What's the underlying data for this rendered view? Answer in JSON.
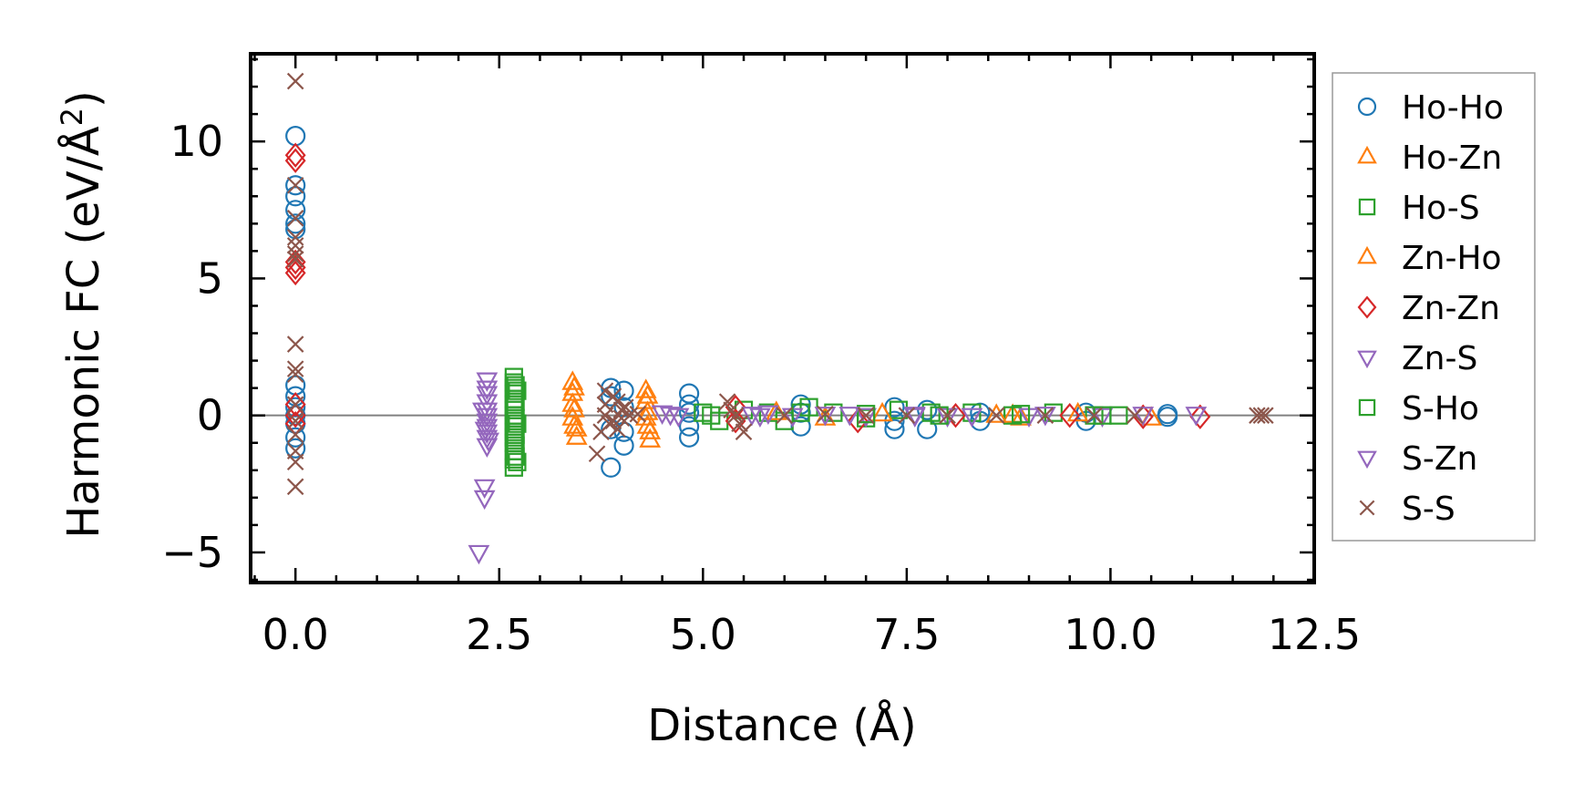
{
  "chart_data": {
    "type": "scatter",
    "xlabel": "Distance (Å)",
    "ylabel_main": "Harmonic FC (eV/Å",
    "ylabel_sup": "2",
    "ylabel_close": ")",
    "xlim": [
      -0.55,
      12.5
    ],
    "ylim": [
      -6.1,
      13.2
    ],
    "xticks": [
      0.0,
      2.5,
      5.0,
      7.5,
      10.0,
      12.5
    ],
    "xtick_labels": [
      "0.0",
      "2.5",
      "5.0",
      "7.5",
      "10.0",
      "12.5"
    ],
    "yticks": [
      -5,
      0,
      5,
      10
    ],
    "ytick_labels": [
      "−5",
      "0",
      "5",
      "10"
    ],
    "zero_line": true,
    "grid": false,
    "legend_position": "right, outside plot",
    "series": [
      {
        "name": "Ho-Ho",
        "marker": "circle",
        "color": "#1f77b4",
        "x": [
          0,
          0,
          0,
          0,
          0,
          0,
          0,
          0,
          0,
          0,
          0,
          0,
          0,
          3.87,
          3.87,
          3.87,
          3.87,
          4.03,
          4.03,
          4.03,
          4.03,
          4.83,
          4.83,
          4.83,
          4.83,
          4.83,
          6.2,
          6.2,
          6.2,
          7.35,
          7.35,
          7.35,
          7.75,
          7.75,
          8.4,
          8.4,
          9.7,
          9.7,
          10.7,
          10.7
        ],
        "y": [
          10.2,
          8.4,
          8.0,
          7.5,
          7.0,
          6.8,
          1.1,
          0.7,
          0.3,
          0,
          -0.3,
          -0.8,
          -1.2,
          -1.9,
          0.7,
          1.0,
          -0.5,
          0.9,
          0.3,
          -0.6,
          -1.1,
          0.8,
          0.4,
          -0.4,
          -0.8,
          0.1,
          0.4,
          0.1,
          -0.4,
          0.3,
          -0.2,
          -0.5,
          0.2,
          -0.5,
          0.1,
          -0.2,
          0.1,
          -0.2,
          0.05,
          -0.05
        ]
      },
      {
        "name": "Ho-Zn",
        "marker": "triangle-up",
        "color": "#ff7f0e",
        "x": [
          3.4,
          3.4,
          3.4,
          3.4,
          3.45,
          3.45,
          4.3,
          4.3,
          4.3,
          4.35,
          4.35,
          8.8,
          8.9,
          10.5
        ],
        "y": [
          1.2,
          0.8,
          0.4,
          -0.1,
          -0.5,
          -0.8,
          0.9,
          0.5,
          -0.1,
          -0.6,
          -0.9,
          0.0,
          -0.1,
          -0.1
        ]
      },
      {
        "name": "Ho-S",
        "marker": "square",
        "color": "#2ca02c",
        "x": [
          2.68,
          2.68,
          2.68,
          2.68,
          2.68,
          2.68,
          2.68,
          2.68,
          2.68,
          2.68,
          2.68,
          2.68,
          2.68,
          2.68,
          2.68,
          2.68,
          2.7,
          2.7,
          2.7,
          2.7,
          2.7,
          2.7,
          5.0,
          5.2,
          5.5,
          5.8,
          6.0,
          6.3,
          6.6,
          7.0,
          7.4,
          7.8,
          8.3,
          8.8,
          9.3,
          9.8,
          10.1
        ],
        "y": [
          1.4,
          1.2,
          1.0,
          0.8,
          0.6,
          0.4,
          0.2,
          0.0,
          -0.2,
          -0.4,
          -0.6,
          -0.8,
          -1.0,
          -1.3,
          -1.6,
          -1.9,
          1.1,
          0.5,
          -0.1,
          -0.7,
          -1.1,
          -1.5,
          0.1,
          -0.2,
          0.2,
          0.1,
          -0.2,
          0.3,
          0.1,
          -0.1,
          0.2,
          0.1,
          0.1,
          0.0,
          0.1,
          0.0,
          0.0
        ]
      },
      {
        "name": "Zn-Ho",
        "marker": "triangle-up",
        "color": "#ff7f0e",
        "x": [
          3.42,
          3.42,
          3.42,
          4.32,
          4.32,
          4.32,
          5.9,
          6.5,
          7.2,
          8.6,
          9.6
        ],
        "y": [
          1.0,
          0.2,
          -0.4,
          0.7,
          0.1,
          -0.4,
          0.1,
          -0.1,
          0.05,
          0.0,
          0.05
        ]
      },
      {
        "name": "Zn-Zn",
        "marker": "diamond",
        "color": "#d62728",
        "x": [
          0,
          0,
          0,
          0,
          0,
          0,
          0,
          0,
          5.4,
          5.4,
          6.9,
          8.1,
          9.5,
          10.4,
          11.1
        ],
        "y": [
          9.5,
          9.3,
          5.6,
          5.4,
          5.2,
          0.4,
          0.0,
          -0.3,
          0.3,
          -0.2,
          -0.2,
          0.0,
          0.0,
          -0.05,
          -0.05
        ]
      },
      {
        "name": "Zn-S",
        "marker": "triangle-down",
        "color": "#9467bd",
        "x": [
          2.25,
          2.32,
          2.32,
          2.35,
          2.35,
          2.35,
          2.35,
          2.35,
          2.35,
          2.35,
          2.35,
          2.35,
          2.35,
          2.35,
          4.5,
          4.7,
          5.6,
          5.8,
          6.1,
          6.5,
          7.0,
          7.6,
          8.0,
          9.0,
          9.9,
          10.4,
          11.05
        ],
        "y": [
          -5.0,
          -3.0,
          -2.6,
          1.3,
          1.0,
          0.8,
          0.5,
          0.2,
          0.0,
          -0.2,
          -0.4,
          -0.6,
          -0.8,
          -1.1,
          0.1,
          0.0,
          0.05,
          0.1,
          0.0,
          0.05,
          0.0,
          0.05,
          0.0,
          0.0,
          0.0,
          0.05,
          0.05
        ]
      },
      {
        "name": "S-Ho",
        "marker": "square",
        "color": "#2ca02c",
        "x": [
          2.72,
          2.72,
          2.72,
          5.1,
          6.2,
          7.0,
          7.9,
          8.9,
          9.9
        ],
        "y": [
          0.9,
          -0.3,
          -1.7,
          0.0,
          0.1,
          0.05,
          0.0,
          0.05,
          0.0
        ]
      },
      {
        "name": "S-Zn",
        "marker": "triangle-down",
        "color": "#9467bd",
        "x": [
          2.3,
          2.33,
          2.37,
          4.6,
          5.7,
          6.8,
          7.6,
          8.3,
          9.2
        ],
        "y": [
          0.2,
          -0.5,
          -0.9,
          0.05,
          0.0,
          0.05,
          0.0,
          0.0,
          0.05
        ]
      },
      {
        "name": "S-S",
        "marker": "cross",
        "color": "#8c564b",
        "x": [
          0,
          0,
          0,
          0,
          0,
          0,
          0,
          0,
          0,
          0,
          0,
          0,
          0,
          0,
          0,
          0,
          3.7,
          3.75,
          3.8,
          3.8,
          3.8,
          3.85,
          3.9,
          3.9,
          3.95,
          3.95,
          4.0,
          4.0,
          4.05,
          4.1,
          4.2,
          5.3,
          5.35,
          5.4,
          5.45,
          5.5,
          6.0,
          6.5,
          7.0,
          7.5,
          8.0,
          8.6,
          9.2,
          9.8,
          10.3,
          11.8,
          11.85,
          11.9
        ],
        "y": [
          12.2,
          8.4,
          7.2,
          6.5,
          6.2,
          5.9,
          5.7,
          2.6,
          1.7,
          1.5,
          0.4,
          -0.2,
          -0.7,
          -1.3,
          -1.7,
          -2.6,
          -1.4,
          -0.6,
          0.9,
          0.4,
          0.0,
          -0.3,
          0.7,
          -0.2,
          0.5,
          -0.5,
          0.2,
          -0.1,
          0.3,
          0.0,
          0.05,
          0.5,
          0.2,
          0.0,
          -0.3,
          -0.6,
          0.0,
          0.05,
          0.0,
          0.0,
          0.0,
          0.0,
          0.0,
          0.0,
          0.0,
          0.0,
          0.0,
          0.0
        ]
      }
    ]
  }
}
